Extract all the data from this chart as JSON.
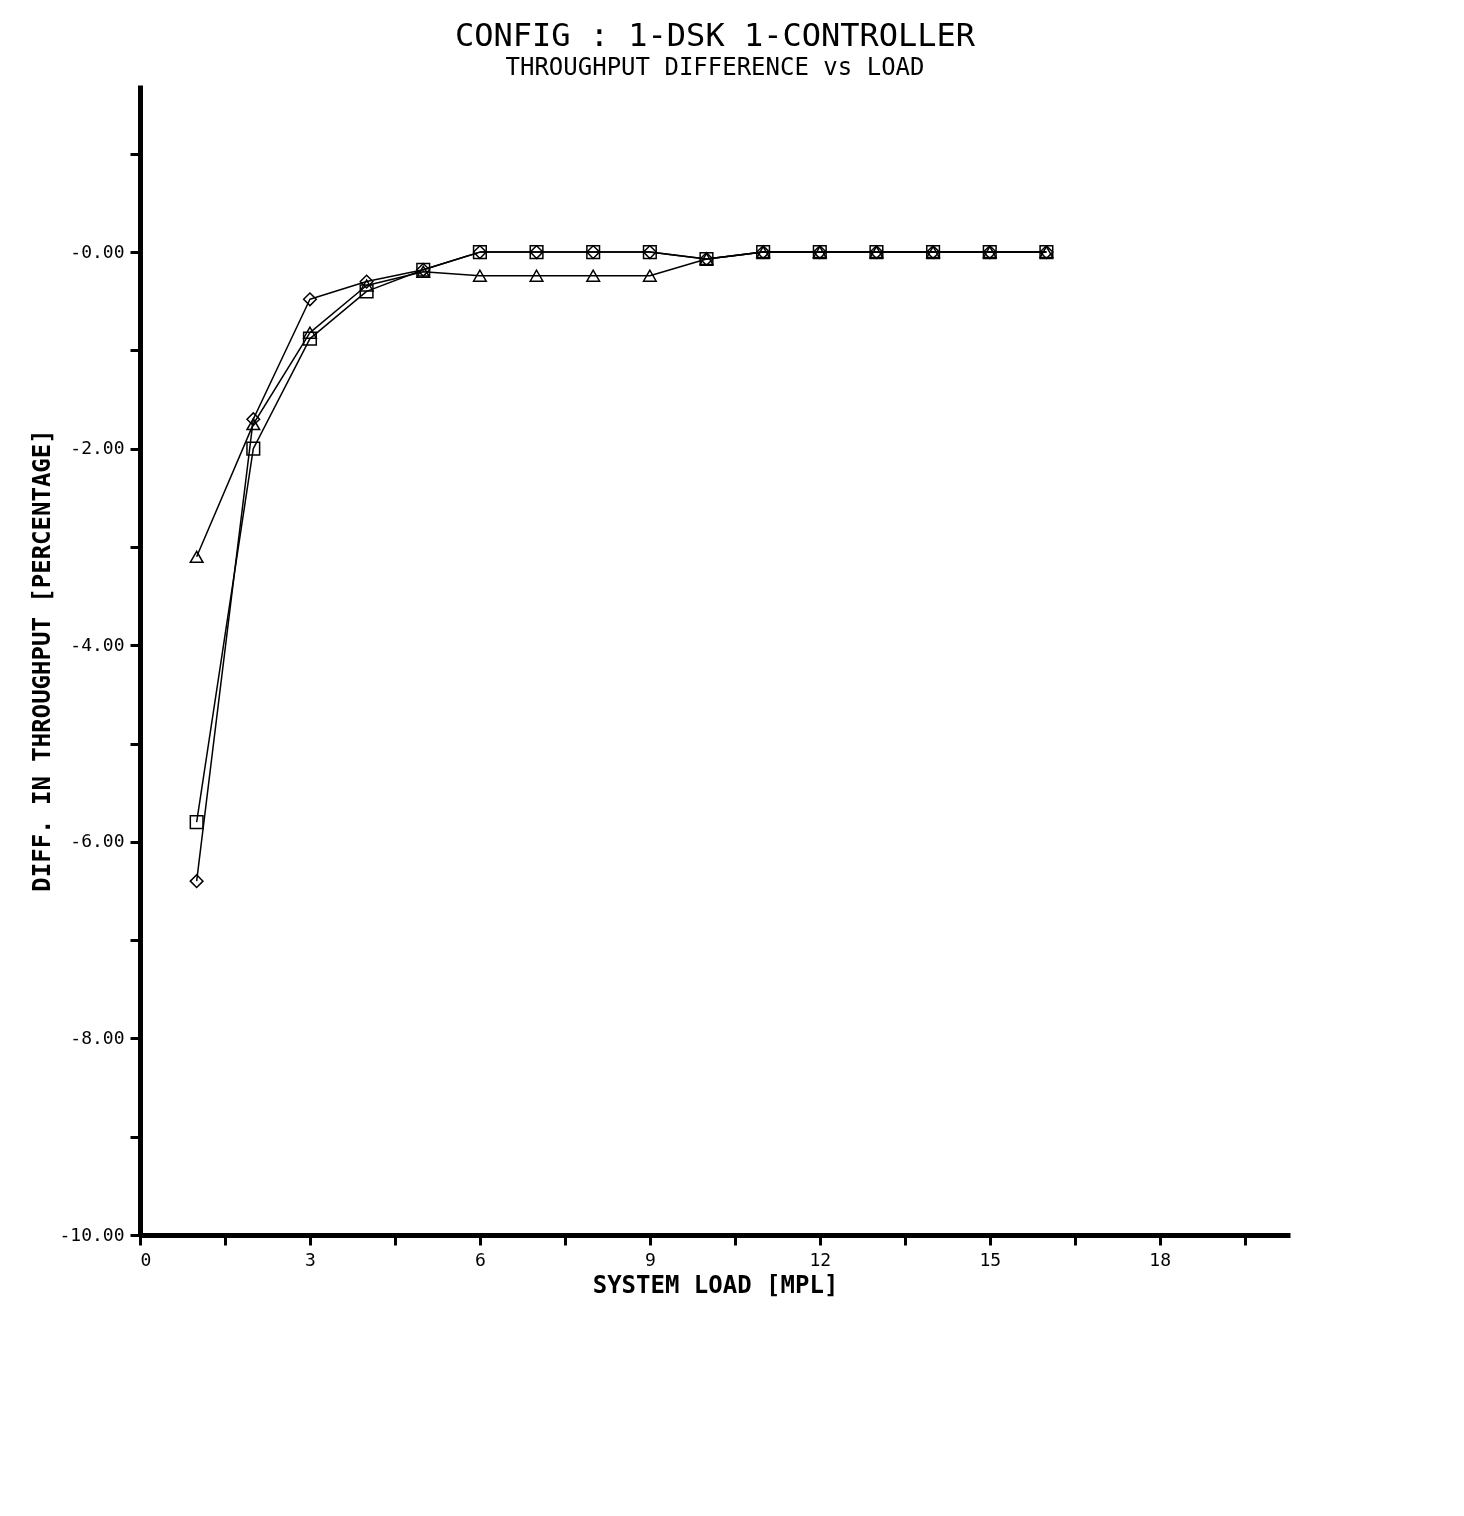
{
  "chart_data": {
    "type": "line",
    "title": "CONFIG : 1-DSK 1-CONTROLLER",
    "subtitle": "THROUGHPUT DIFFERENCE vs LOAD",
    "xlabel": "SYSTEM LOAD [MPL]",
    "ylabel": "DIFF. IN THROUGHPUT [PERCENTAGE]",
    "x": [
      1,
      2,
      3,
      4,
      5,
      6,
      7,
      8,
      9,
      10,
      11,
      12,
      13,
      14,
      15,
      16
    ],
    "series": [
      {
        "color": "#000000",
        "marker": "triangle",
        "values": [
          -3.1,
          -1.75,
          -0.82,
          -0.34,
          -0.2,
          -0.24,
          -0.24,
          -0.24,
          -0.24,
          -0.07,
          0,
          0,
          0,
          0,
          0,
          0
        ]
      },
      {
        "color": "#000000",
        "marker": "square",
        "values": [
          -5.8,
          -2.0,
          -0.88,
          -0.4,
          -0.18,
          0,
          0,
          0,
          0,
          -0.07,
          0,
          0,
          0,
          0,
          0,
          0
        ]
      },
      {
        "color": "#000000",
        "marker": "diamond",
        "values": [
          -6.4,
          -1.7,
          -0.48,
          -0.3,
          -0.18,
          0,
          0,
          0,
          0,
          -0.07,
          0,
          0,
          0,
          0,
          0,
          0
        ]
      }
    ],
    "xlim": [
      0,
      20.3
    ],
    "xticks": [
      0,
      {
        "value": 1.5,
        "label": null
      },
      3,
      {
        "value": 4.5,
        "label": null
      },
      6,
      {
        "value": 7.5,
        "label": null
      },
      9,
      {
        "value": 10.5,
        "label": null
      },
      12,
      {
        "value": 13.5,
        "label": null
      },
      15,
      {
        "value": 16.5,
        "label": null
      },
      18,
      {
        "value": 19.5,
        "label": null
      }
    ],
    "ylim": [
      -10,
      1.7
    ],
    "yticks": [
      {
        "value": 1,
        "label": null
      },
      {
        "value": 0,
        "label": "-0.00"
      },
      {
        "value": -1,
        "label": null
      },
      {
        "value": -2,
        "label": "-2.00"
      },
      {
        "value": -3,
        "label": null
      },
      {
        "value": -4,
        "label": "-4.00"
      },
      {
        "value": -5,
        "label": null
      },
      {
        "value": -6,
        "label": "-6.00"
      },
      {
        "value": -7,
        "label": null
      },
      {
        "value": -8,
        "label": "-8.00"
      },
      {
        "value": -9,
        "label": null
      },
      {
        "value": -10,
        "label": "-10.00"
      }
    ],
    "grid": false,
    "line_style": "solid"
  }
}
